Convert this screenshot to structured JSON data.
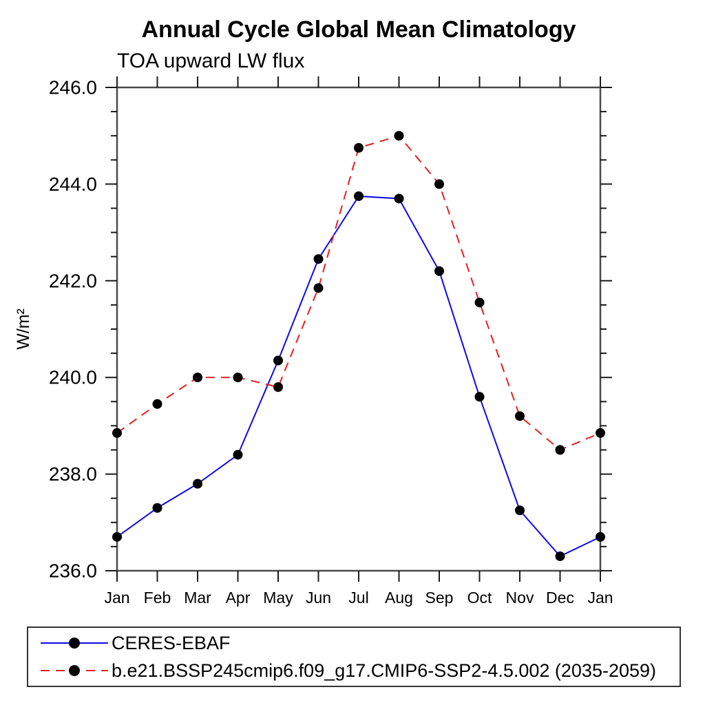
{
  "chart": {
    "title": "Annual Cycle Global Mean Climatology",
    "subtitle": "TOA upward LW flux",
    "ylabel": "W/m²"
  },
  "legend": {
    "items": [
      {
        "label": "CERES-EBAF",
        "color": "#0a0ae8",
        "style": "solid",
        "marker_color": "#000000"
      },
      {
        "label": "b.e21.BSSP245cmip6.f09_g17.CMIP6-SSP2-4.5.002 (2035-2059)",
        "color": "#e81e1e",
        "style": "dashed",
        "marker_color": "#000000"
      }
    ]
  },
  "chart_data": {
    "type": "line",
    "title": "Annual Cycle Global Mean Climatology",
    "subtitle": "TOA upward LW flux",
    "xlabel": "",
    "ylabel": "W/m²",
    "categories": [
      "Jan",
      "Feb",
      "Mar",
      "Apr",
      "May",
      "Jun",
      "Jul",
      "Aug",
      "Sep",
      "Oct",
      "Nov",
      "Dec",
      "Jan"
    ],
    "ylim": [
      236.0,
      246.0
    ],
    "ytick_interval": 2.0,
    "yminor_interval": 0.5,
    "ytick_labels": [
      "236.0",
      "238.0",
      "240.0",
      "242.0",
      "244.0",
      "246.0"
    ],
    "grid": false,
    "legend_position": "bottom-left",
    "marker": {
      "shape": "filled-circle",
      "color": "#000000",
      "radius_px": 7
    },
    "series": [
      {
        "name": "CERES-EBAF",
        "color": "#0a0ae8",
        "line_style": "solid",
        "values": [
          236.7,
          237.3,
          237.8,
          238.4,
          240.35,
          242.45,
          243.75,
          243.7,
          242.2,
          239.6,
          237.25,
          236.3,
          236.7
        ]
      },
      {
        "name": "b.e21.BSSP245cmip6.f09_g17.CMIP6-SSP2-4.5.002 (2035-2059)",
        "color": "#e81e1e",
        "line_style": "dashed",
        "values": [
          238.85,
          239.45,
          240.0,
          240.0,
          239.8,
          241.85,
          244.75,
          245.0,
          244.0,
          241.55,
          239.2,
          238.5,
          238.85
        ]
      }
    ]
  }
}
